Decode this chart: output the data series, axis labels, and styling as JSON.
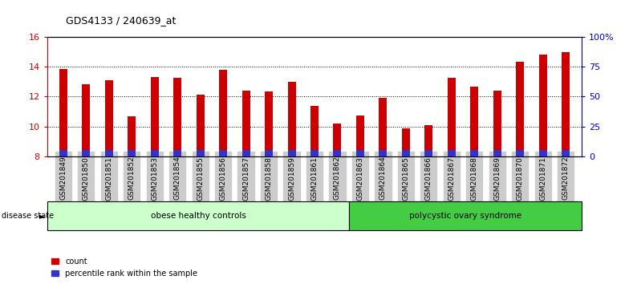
{
  "title": "GDS4133 / 240639_at",
  "samples": [
    "GSM201849",
    "GSM201850",
    "GSM201851",
    "GSM201852",
    "GSM201853",
    "GSM201854",
    "GSM201855",
    "GSM201856",
    "GSM201857",
    "GSM201858",
    "GSM201859",
    "GSM201861",
    "GSM201862",
    "GSM201863",
    "GSM201864",
    "GSM201865",
    "GSM201866",
    "GSM201867",
    "GSM201868",
    "GSM201869",
    "GSM201870",
    "GSM201871",
    "GSM201872"
  ],
  "count_values": [
    13.85,
    12.85,
    13.1,
    10.65,
    13.3,
    13.25,
    12.15,
    13.8,
    12.4,
    12.35,
    13.0,
    11.35,
    10.2,
    10.75,
    11.9,
    9.85,
    10.1,
    13.25,
    12.65,
    12.4,
    14.35,
    14.8,
    15.0
  ],
  "percentile_values": [
    5.0,
    5.0,
    5.0,
    5.0,
    5.0,
    5.0,
    5.0,
    5.0,
    5.0,
    5.0,
    5.0,
    5.0,
    5.0,
    5.0,
    5.0,
    5.0,
    5.0,
    5.0,
    5.0,
    5.0,
    5.0,
    5.0,
    5.0
  ],
  "bar_bottom": 8.0,
  "ylim_left": [
    8,
    16
  ],
  "ylim_right": [
    0,
    100
  ],
  "yticks_left": [
    8,
    10,
    12,
    14,
    16
  ],
  "yticks_right": [
    0,
    25,
    50,
    75,
    100
  ],
  "ytick_labels_right": [
    "0",
    "25",
    "50",
    "75",
    "100%"
  ],
  "group1_label": "obese healthy controls",
  "group2_label": "polycystic ovary syndrome",
  "group1_count": 13,
  "group2_count": 10,
  "bar_color_red": "#cc0000",
  "bar_color_blue": "#3333cc",
  "group1_color": "#ccffcc",
  "group2_color": "#44cc44",
  "label_color_left": "#cc0000",
  "label_color_right": "#0000cc",
  "legend_count_label": "count",
  "legend_percentile_label": "percentile rank within the sample",
  "bar_width": 0.35,
  "disease_state_label": "disease state",
  "xticklabel_bg": "#cccccc",
  "spine_color": "#000000"
}
